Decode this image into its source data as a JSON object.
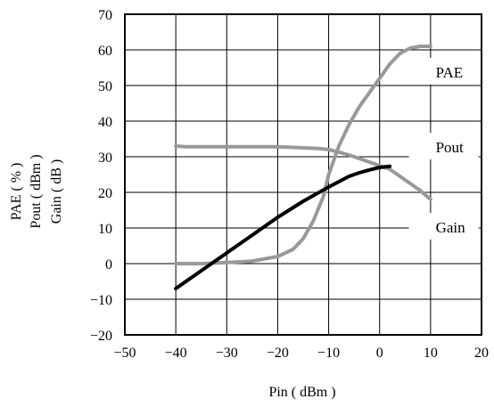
{
  "chart_data": {
    "type": "line",
    "xlabel": "Pin ( dBm )",
    "ylabel_lines": [
      "PAE ( % )",
      "Pout ( dBm )",
      "Gain ( dB )"
    ],
    "xlim": [
      -50,
      20
    ],
    "ylim": [
      -20,
      70
    ],
    "x_ticks": [
      -50,
      -40,
      -30,
      -20,
      -10,
      0,
      10,
      20
    ],
    "y_ticks": [
      -20,
      -10,
      0,
      10,
      20,
      30,
      40,
      50,
      60,
      70
    ],
    "grid": true,
    "x_tick_labels": [
      "−50",
      "−40",
      "−30",
      "−20",
      "−10",
      "0",
      "10",
      "20"
    ],
    "y_tick_labels": [
      "−20",
      "−10",
      "0",
      "10",
      "20",
      "30",
      "40",
      "50",
      "60",
      "70"
    ],
    "series": [
      {
        "name": "PAE",
        "color": "#999999",
        "x": [
          -40,
          -35,
          -30,
          -25,
          -20,
          -17,
          -15,
          -13,
          -11,
          -10,
          -8,
          -6,
          -4,
          -2,
          0,
          2,
          4,
          6,
          8,
          10
        ],
        "y": [
          0,
          0,
          0.3,
          0.7,
          2,
          4,
          7,
          12,
          19,
          25,
          33,
          39,
          44,
          48,
          52,
          56,
          59,
          60.5,
          61,
          61
        ]
      },
      {
        "name": "Pout",
        "color": "#999999",
        "x": [
          -40,
          -38,
          -35,
          -30,
          -25,
          -20,
          -15,
          -12,
          -10,
          -8,
          -6,
          -4,
          -2,
          0,
          2,
          4,
          6,
          8,
          10
        ],
        "y": [
          33,
          32.8,
          32.8,
          32.8,
          32.8,
          32.8,
          32.5,
          32.3,
          32,
          31.3,
          30.5,
          29.5,
          28.5,
          27.5,
          26.5,
          24.5,
          22.5,
          20.5,
          18
        ]
      },
      {
        "name": "Gain",
        "color": "#000000",
        "x": [
          -40,
          -35,
          -30,
          -25,
          -20,
          -15,
          -10,
          -8,
          -6,
          -4,
          -2,
          0,
          2
        ],
        "y": [
          -7,
          -2,
          3,
          8,
          13,
          17.5,
          21.5,
          23,
          24.5,
          25.5,
          26.3,
          27,
          27.3
        ]
      }
    ],
    "series_labels": [
      {
        "text": "PAE",
        "x": 11,
        "y": 53.5
      },
      {
        "text": "Pout",
        "x": 11,
        "y": 32.5
      },
      {
        "text": "Gain",
        "x": 11,
        "y": 10
      }
    ]
  }
}
